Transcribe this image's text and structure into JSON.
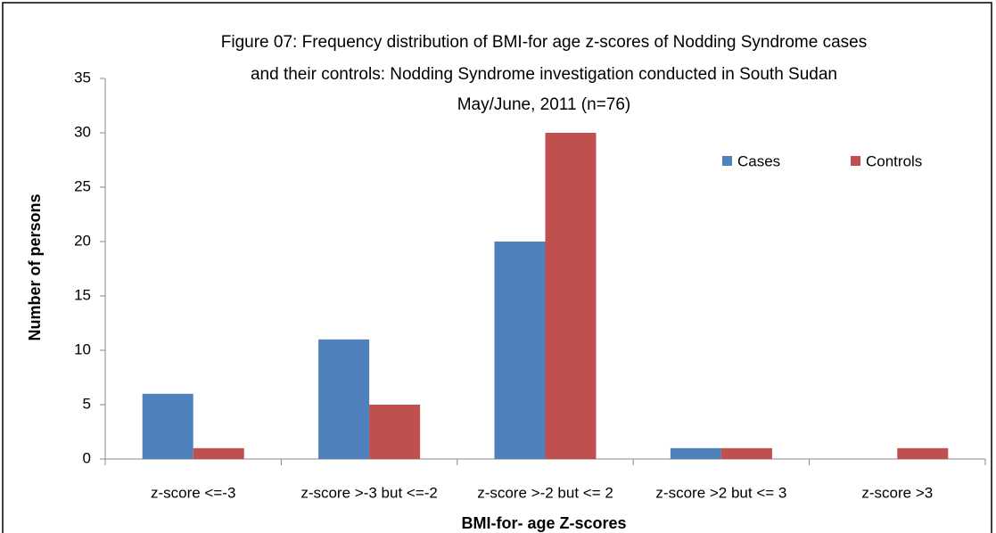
{
  "chart_data": {
    "type": "bar",
    "title": [
      "Figure 07: Frequency distribution of BMI-for age z-scores of Nodding Syndrome cases",
      "and their controls: Nodding Syndrome investigation conducted in South Sudan",
      "May/June, 2011 (n=76)"
    ],
    "x_label": "BMI-for- age Z-scores",
    "y_label": "Number of persons",
    "categories": [
      "z-score <=-3",
      "z-score >-3 but <=-2",
      "z-score >-2 but <= 2",
      "z-score >2 but <= 3",
      "z-score >3"
    ],
    "series": [
      {
        "name": "Cases",
        "color": "#4f81bd",
        "values": [
          6,
          11,
          20,
          1,
          0
        ]
      },
      {
        "name": "Controls",
        "color": "#c0504d",
        "values": [
          1,
          5,
          30,
          1,
          1
        ]
      }
    ],
    "ylim": [
      0,
      35
    ],
    "yticks": [
      0,
      5,
      10,
      15,
      20,
      25,
      30,
      35
    ],
    "grid": false,
    "legend": "top-right"
  }
}
